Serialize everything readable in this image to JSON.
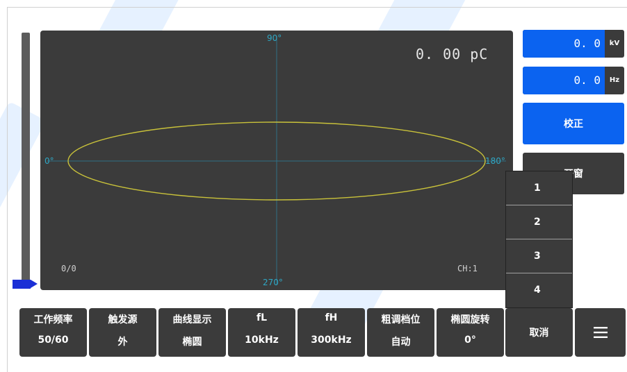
{
  "scope": {
    "angle_labels": [
      "90°",
      "0°",
      "180°",
      "270°"
    ],
    "pc_readout": "0. 00 pC",
    "counter": "0/0",
    "channel": "CH:1"
  },
  "readouts": {
    "voltage": {
      "value": "0. 0",
      "unit": "kV"
    },
    "frequency": {
      "value": "0. 0",
      "unit": "Hz"
    }
  },
  "buttons": {
    "calibrate": "校正",
    "open_window": "开窗"
  },
  "dropdown": {
    "options": [
      "1",
      "2",
      "3",
      "4"
    ],
    "cancel": "取消"
  },
  "params": [
    {
      "title": "工作频率",
      "value": "50/60"
    },
    {
      "title": "触发源",
      "value": "外"
    },
    {
      "title": "曲线显示",
      "value": "椭圆"
    },
    {
      "title": "fL",
      "value": "10kHz"
    },
    {
      "title": "fH",
      "value": "300kHz"
    },
    {
      "title": "粗调档位",
      "value": "自动"
    },
    {
      "title": "椭圆旋转",
      "value": "0°"
    }
  ],
  "menu": {
    "icon": "menu-icon"
  },
  "colors": {
    "accent_blue": "#0b63f0",
    "panel_dark": "#3b3b3b",
    "axis_cyan": "#2fa7c4",
    "ellipse_yellow": "#c9c23a",
    "level_pointer": "#1b2fd6"
  }
}
